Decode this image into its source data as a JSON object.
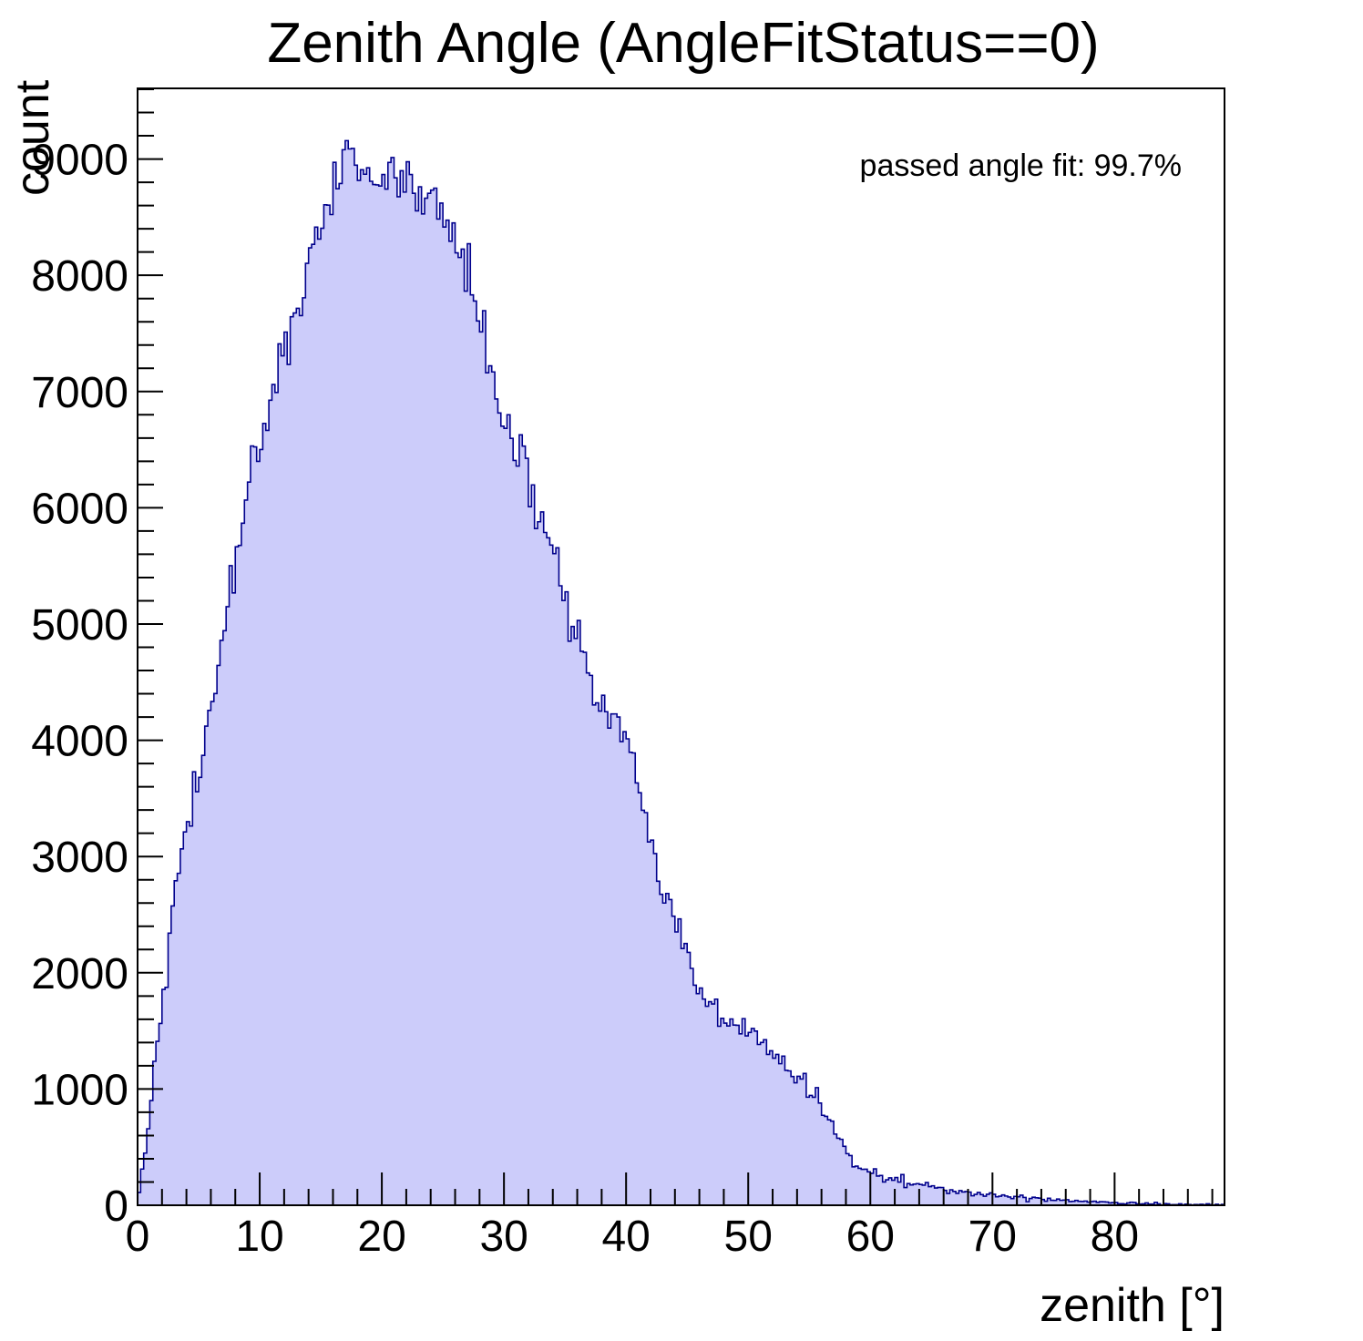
{
  "title": "Zenith Angle (AngleFitStatus==0)",
  "annotation": "passed angle fit: 99.7%",
  "chart_data": {
    "type": "bar",
    "subtype": "histogram",
    "title": "Zenith Angle (AngleFitStatus==0)",
    "xlabel": "zenith [°]",
    "ylabel": "count",
    "annotation": "passed angle fit: 99.7%",
    "xlim": [
      0,
      89
    ],
    "ylim": [
      0,
      9608
    ],
    "bin_width_deg": 0.25,
    "grid": false,
    "legend": "none",
    "x_major_ticks": [
      0,
      10,
      20,
      30,
      40,
      50,
      60,
      70,
      80
    ],
    "x_tick_labels": [
      "0",
      "10",
      "20",
      "30",
      "40",
      "50",
      "60",
      "70",
      "80"
    ],
    "x_minor_step": 2,
    "y_major_ticks": [
      0,
      1000,
      2000,
      3000,
      4000,
      5000,
      6000,
      7000,
      8000,
      9000
    ],
    "y_tick_labels": [
      "0",
      "1000",
      "2000",
      "3000",
      "4000",
      "5000",
      "6000",
      "7000",
      "8000",
      "9000"
    ],
    "y_minor_step": 200,
    "peak": {
      "zenith_deg": 18,
      "count": 9000
    },
    "envelope": {
      "zenith_deg": [
        0,
        1,
        2,
        3,
        4,
        5,
        6,
        7,
        8,
        9,
        10,
        11,
        12,
        13,
        14,
        15,
        16,
        17,
        18,
        19,
        20,
        21,
        22,
        23,
        24,
        25,
        26,
        27,
        28,
        29,
        30,
        31,
        32,
        33,
        34,
        35,
        36,
        37,
        38,
        39,
        40,
        41,
        42,
        43,
        44,
        45,
        46,
        47,
        48,
        49,
        50,
        51,
        52,
        53,
        54,
        55,
        56,
        57,
        58,
        59,
        60,
        61,
        62,
        63,
        64,
        65,
        66,
        67,
        68,
        69,
        70,
        71,
        72,
        73,
        74,
        75,
        76,
        77,
        78,
        79,
        80,
        81,
        82,
        83,
        84,
        85,
        86,
        87,
        88,
        89
      ],
      "count": [
        30,
        800,
        1800,
        2600,
        3200,
        3700,
        4300,
        4900,
        5500,
        6100,
        6600,
        7000,
        7400,
        7700,
        8100,
        8400,
        8700,
        8900,
        9000,
        8950,
        8850,
        8800,
        8800,
        8750,
        8650,
        8500,
        8300,
        8000,
        7600,
        7200,
        6800,
        6500,
        6200,
        5900,
        5600,
        5200,
        4900,
        4550,
        4300,
        4150,
        4000,
        3600,
        3100,
        2700,
        2400,
        2150,
        1900,
        1700,
        1580,
        1530,
        1490,
        1400,
        1300,
        1190,
        1100,
        1000,
        880,
        650,
        455,
        355,
        315,
        260,
        220,
        200,
        180,
        155,
        130,
        115,
        105,
        98,
        92,
        80,
        65,
        60,
        55,
        52,
        45,
        39,
        34,
        30,
        26,
        22,
        18,
        15,
        12,
        10,
        8,
        6,
        5,
        4
      ]
    },
    "noise_seed": 42,
    "noise_scale": 1.5,
    "colors": {
      "fill": "#ccccfa",
      "line": "#00008c",
      "frame": "#000000",
      "text": "#000000",
      "background": "#ffffff"
    }
  }
}
